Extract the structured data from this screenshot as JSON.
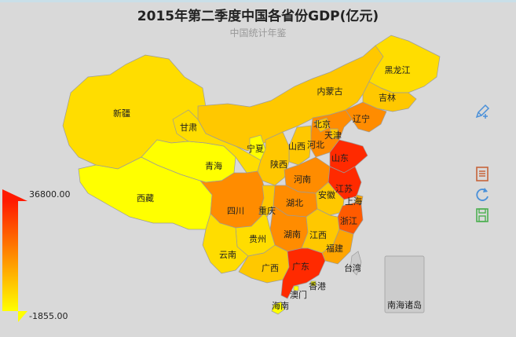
{
  "title": "2015年第二季度中国各省份GDP(亿元)",
  "subtitle": "中国统计年鉴",
  "visual_map": {
    "max_label": "36800.00",
    "min_label": "-1855.00",
    "color_high": "#ff1a00",
    "color_low": "#ffff00"
  },
  "colors": {
    "background": "#d9d9d9",
    "border": "#9b9b9b",
    "pale_yellow": "#ffff00",
    "yellow": "#ffdd00",
    "light_orange": "#ffc800",
    "orange": "#ffa500",
    "dark_orange": "#ff8c00",
    "red_orange": "#ff5a00",
    "red": "#ff2a00",
    "gray": "#cccccc"
  },
  "regions": [
    {
      "name": "黑龙江",
      "color": "yellow"
    },
    {
      "name": "吉林",
      "color": "light_orange"
    },
    {
      "name": "辽宁",
      "color": "dark_orange"
    },
    {
      "name": "内蒙古",
      "color": "light_orange"
    },
    {
      "name": "新疆",
      "color": "yellow"
    },
    {
      "name": "甘肃",
      "color": "yellow"
    },
    {
      "name": "青海",
      "color": "pale_yellow"
    },
    {
      "name": "西藏",
      "color": "pale_yellow"
    },
    {
      "name": "宁夏",
      "color": "pale_yellow"
    },
    {
      "name": "陕西",
      "color": "light_orange"
    },
    {
      "name": "山西",
      "color": "light_orange"
    },
    {
      "name": "北京",
      "color": "light_orange"
    },
    {
      "name": "天津",
      "color": "light_orange"
    },
    {
      "name": "河北",
      "color": "dark_orange"
    },
    {
      "name": "山东",
      "color": "red"
    },
    {
      "name": "河南",
      "color": "dark_orange"
    },
    {
      "name": "江苏",
      "color": "red"
    },
    {
      "name": "上海",
      "color": "orange"
    },
    {
      "name": "安徽",
      "color": "light_orange"
    },
    {
      "name": "湖北",
      "color": "dark_orange"
    },
    {
      "name": "浙江",
      "color": "red_orange"
    },
    {
      "name": "四川",
      "color": "dark_orange"
    },
    {
      "name": "重庆",
      "color": "light_orange"
    },
    {
      "name": "湖南",
      "color": "dark_orange"
    },
    {
      "name": "江西",
      "color": "light_orange"
    },
    {
      "name": "福建",
      "color": "orange"
    },
    {
      "name": "贵州",
      "color": "yellow"
    },
    {
      "name": "云南",
      "color": "yellow"
    },
    {
      "name": "广西",
      "color": "light_orange"
    },
    {
      "name": "广东",
      "color": "red"
    },
    {
      "name": "香港",
      "color": "pale_yellow"
    },
    {
      "name": "澳门",
      "color": "pale_yellow"
    },
    {
      "name": "海南",
      "color": "pale_yellow"
    },
    {
      "name": "台湾",
      "color": "gray"
    },
    {
      "name": "南海诸岛",
      "color": "gray"
    }
  ],
  "toolbox": [
    {
      "name": "pencil-icon",
      "color": "#4a90d9"
    },
    {
      "name": "data-view-icon",
      "color": "#c7643a"
    },
    {
      "name": "refresh-icon",
      "color": "#4a90d9"
    },
    {
      "name": "save-icon",
      "color": "#4caf50"
    }
  ]
}
